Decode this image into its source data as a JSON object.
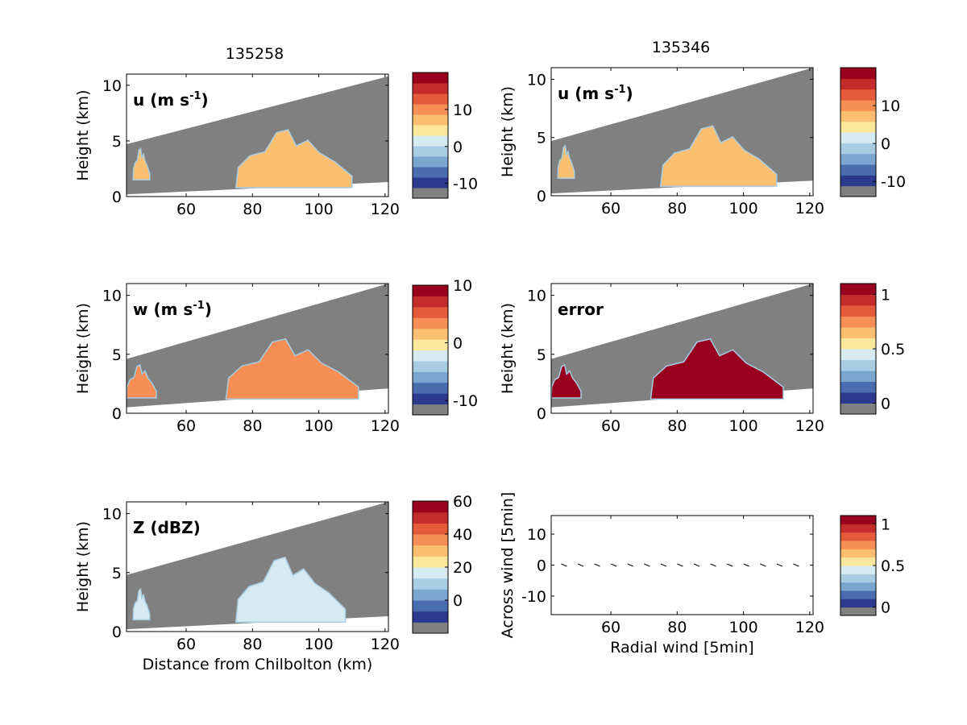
{
  "figure": {
    "left_title": "135258",
    "right_title": "135346"
  },
  "colors": {
    "masked_gray": "#808080",
    "colormap": [
      "#2b3a8e",
      "#4a6db0",
      "#7ba6cf",
      "#a8cde3",
      "#d5eaf1",
      "#fde79a",
      "#fbbf72",
      "#f68e55",
      "#e45a3a",
      "#c42b2b",
      "#98001e"
    ]
  },
  "chart_data": [
    {
      "id": "u_left",
      "type": "heatmap",
      "panel_label": "u (m s-1)",
      "panel_label_main": "u (m s",
      "panel_label_sup": "-1",
      "panel_label_tail": ")",
      "ylabel": "Height (km)",
      "xlabel": "",
      "xlim": [
        42,
        121
      ],
      "ylim": [
        0,
        11
      ],
      "xticks": [
        60,
        80,
        100,
        120
      ],
      "yticks": [
        0,
        5,
        10
      ],
      "colorbar": {
        "range": [
          -14,
          20
        ],
        "ticks": [
          -10,
          0,
          10
        ],
        "tick_labels": [
          "-10",
          "0",
          "10"
        ]
      },
      "beam": {
        "x": [
          42,
          121
        ],
        "bottom_km": [
          0.2,
          1.3
        ],
        "top_km": [
          4.7,
          10.8
        ]
      },
      "echoes": [
        {
          "x": [
            44,
            49
          ],
          "y": [
            1.5,
            4.3
          ],
          "value": 5
        },
        {
          "x": [
            75,
            110
          ],
          "y": [
            0.8,
            6.0
          ],
          "value": 6
        }
      ]
    },
    {
      "id": "u_right",
      "type": "heatmap",
      "panel_label": "u (m s-1)",
      "panel_label_main": "u (m s",
      "panel_label_sup": "-1",
      "panel_label_tail": ")",
      "ylabel": "Height (km)",
      "xlabel": "",
      "xlim": [
        42,
        121
      ],
      "ylim": [
        0,
        11
      ],
      "xticks": [
        60,
        80,
        100,
        120
      ],
      "yticks": [
        0,
        5,
        10
      ],
      "colorbar": {
        "range": [
          -14,
          20
        ],
        "ticks": [
          -10,
          0,
          10
        ],
        "tick_labels": [
          "-10",
          "0",
          "10"
        ]
      },
      "beam": {
        "x": [
          42,
          121
        ],
        "bottom_km": [
          0.2,
          1.3
        ],
        "top_km": [
          4.7,
          11.0
        ]
      },
      "echoes": [
        {
          "x": [
            44,
            49
          ],
          "y": [
            1.5,
            4.3
          ],
          "value": 5
        },
        {
          "x": [
            75,
            110
          ],
          "y": [
            0.8,
            6.0
          ],
          "value": 6
        }
      ]
    },
    {
      "id": "w_left",
      "type": "heatmap",
      "panel_label": "w (m s-1)",
      "panel_label_main": "w (m s",
      "panel_label_sup": "-1",
      "panel_label_tail": ")",
      "ylabel": "Height (km)",
      "xlabel": "",
      "xlim": [
        42,
        121
      ],
      "ylim": [
        0,
        11
      ],
      "xticks": [
        60,
        80,
        100,
        120
      ],
      "yticks": [
        0,
        5,
        10
      ],
      "colorbar": {
        "range": [
          -12.5,
          10
        ],
        "ticks": [
          -10,
          0,
          10
        ],
        "tick_labels": [
          "-10",
          "0",
          "10"
        ]
      },
      "beam": {
        "x": [
          42,
          121
        ],
        "bottom_km": [
          0.5,
          2.1
        ],
        "top_km": [
          4.6,
          11.0
        ]
      },
      "echoes": [
        {
          "x": [
            42,
            51
          ],
          "y": [
            1.3,
            4.1
          ],
          "value": 3
        },
        {
          "x": [
            72,
            112
          ],
          "y": [
            1.2,
            6.3
          ],
          "value": 2
        }
      ]
    },
    {
      "id": "error_right",
      "type": "heatmap",
      "panel_label": "error",
      "panel_label_main": "error",
      "panel_label_sup": "",
      "panel_label_tail": "",
      "ylabel": "Height (km)",
      "xlabel": "",
      "xlim": [
        42,
        121
      ],
      "ylim": [
        0,
        11
      ],
      "xticks": [
        60,
        80,
        100,
        120
      ],
      "yticks": [
        0,
        5,
        10
      ],
      "colorbar": {
        "range": [
          -0.1,
          1.1
        ],
        "ticks": [
          0,
          0.5,
          1
        ],
        "tick_labels": [
          "0",
          "0.5",
          "1"
        ]
      },
      "beam": {
        "x": [
          42,
          121
        ],
        "bottom_km": [
          0.5,
          2.1
        ],
        "top_km": [
          4.6,
          11.0
        ]
      },
      "echoes": [
        {
          "x": [
            42,
            51
          ],
          "y": [
            1.3,
            4.1
          ],
          "value": 1
        },
        {
          "x": [
            72,
            112
          ],
          "y": [
            1.2,
            6.3
          ],
          "value": 1
        }
      ]
    },
    {
      "id": "z_left",
      "type": "heatmap",
      "panel_label": "Z (dBZ)",
      "panel_label_main": "Z (dBZ)",
      "panel_label_sup": "",
      "panel_label_tail": "",
      "ylabel": "Height (km)",
      "xlabel": "Distance from Chilbolton (km)",
      "xlim": [
        42,
        121
      ],
      "ylim": [
        0,
        11
      ],
      "xticks": [
        60,
        80,
        100,
        120
      ],
      "yticks": [
        0,
        5,
        10
      ],
      "colorbar": {
        "range": [
          -20,
          60
        ],
        "ticks": [
          0,
          20,
          40,
          60
        ],
        "tick_labels": [
          "0",
          "20",
          "40",
          "60"
        ]
      },
      "beam": {
        "x": [
          42,
          121
        ],
        "bottom_km": [
          0.2,
          1.3
        ],
        "top_km": [
          4.8,
          11.0
        ]
      },
      "echoes": [
        {
          "x": [
            44,
            49
          ],
          "y": [
            1.0,
            3.6
          ],
          "value": 10
        },
        {
          "x": [
            75,
            108
          ],
          "y": [
            0.8,
            6.3
          ],
          "value": 15
        }
      ]
    },
    {
      "id": "quiver_right",
      "type": "scatter",
      "panel_label": "",
      "panel_label_main": "",
      "panel_label_sup": "",
      "panel_label_tail": "",
      "ylabel": "Across wind [5min]",
      "xlabel": "Radial wind [5min]",
      "xlim": [
        42,
        121
      ],
      "ylim": [
        -16,
        16
      ],
      "xticks": [
        60,
        80,
        100,
        120
      ],
      "yticks": [
        -10,
        0,
        10
      ],
      "colorbar": {
        "range": [
          -0.1,
          1.1
        ],
        "ticks": [
          0,
          0.5,
          1
        ],
        "tick_labels": [
          "0",
          "0.5",
          "1"
        ]
      },
      "arrows": {
        "x": [
          46,
          51,
          56,
          61,
          66,
          71,
          76,
          81,
          86,
          91,
          96,
          101,
          106,
          111,
          116
        ],
        "y": [
          0,
          0,
          0,
          0,
          0,
          0,
          0,
          0,
          0,
          0,
          0,
          0,
          0,
          0,
          0
        ]
      }
    }
  ]
}
